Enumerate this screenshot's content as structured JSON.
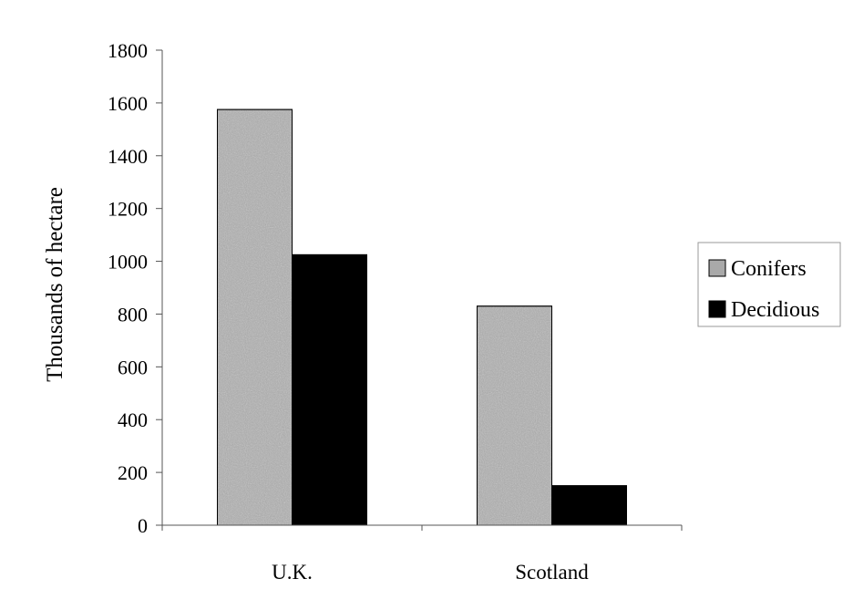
{
  "chart_data": {
    "type": "bar",
    "title": "",
    "xlabel": "",
    "ylabel": "Thousands of hectare",
    "categories": [
      "U.K.",
      "Scotland"
    ],
    "series": [
      {
        "name": "Conifers",
        "values": [
          1575,
          830
        ],
        "color": "#a9a9a9",
        "pattern": "speckled-gray"
      },
      {
        "name": "Decidious",
        "values": [
          1025,
          150
        ],
        "color": "#000000",
        "pattern": "solid-black"
      }
    ],
    "ylim": [
      0,
      1800
    ],
    "yticks": [
      "0",
      "200",
      "400",
      "600",
      "800",
      "1000",
      "1200",
      "1400",
      "1600",
      "1800"
    ],
    "grid": false,
    "legend_position": "right"
  }
}
